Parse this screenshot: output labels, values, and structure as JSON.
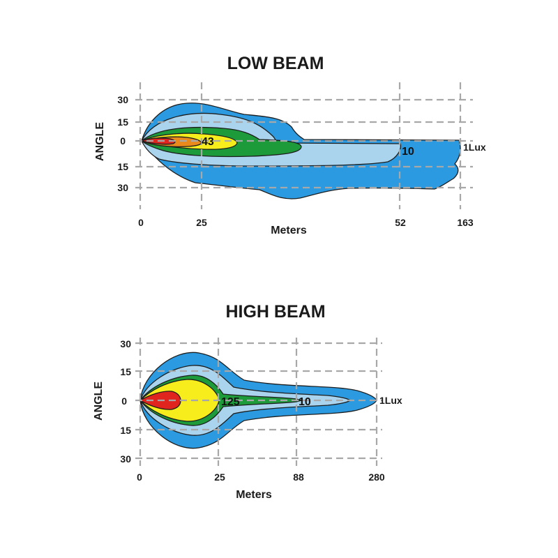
{
  "colors": {
    "outer": "#2b9ae0",
    "light": "#aad4ee",
    "green": "#1d9a3a",
    "yellow": "#f7ec1c",
    "orange": "#eb8a1c",
    "red": "#e0251f",
    "grid": "#a8a8a8"
  },
  "low_beam": {
    "title": "LOW BEAM",
    "ylabel": "ANGLE",
    "xlabel": "Meters",
    "y_ticks": [
      "30",
      "15",
      "0",
      "15",
      "30"
    ],
    "x_ticks": [
      "0",
      "25",
      "52",
      "163"
    ],
    "labels": {
      "inner": "43",
      "mid": "10",
      "outer": "1Lux"
    }
  },
  "high_beam": {
    "title": "HIGH BEAM",
    "ylabel": "ANGLE",
    "xlabel": "Meters",
    "y_ticks": [
      "30",
      "15",
      "0",
      "15",
      "30"
    ],
    "x_ticks": [
      "0",
      "25",
      "88",
      "280"
    ],
    "labels": {
      "inner": "125",
      "mid": "10",
      "outer": "1Lux"
    }
  }
}
